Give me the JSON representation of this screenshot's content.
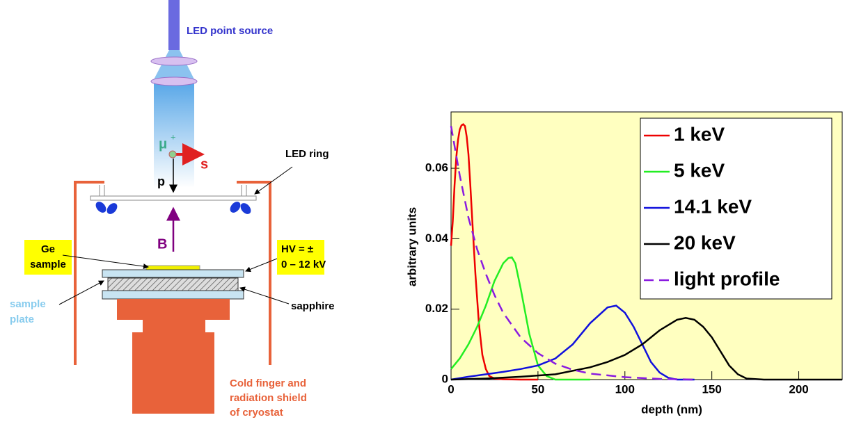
{
  "diagram": {
    "source_label": "LED point source",
    "muon": "μ",
    "muon_charge": "+",
    "spin": "s",
    "momentum": "p",
    "ring_label": "LED ring",
    "field": "B",
    "ge_label": [
      "Ge",
      "sample"
    ],
    "hv_label": [
      "HV = ±",
      "0 – 12 kV"
    ],
    "sapphire_label": "sapphire",
    "plate_label": [
      "sample",
      "plate"
    ],
    "cold_label": [
      "Cold finger and",
      "radiation shield",
      "of cryostat"
    ]
  },
  "chart_data": {
    "type": "line",
    "xlabel": "depth (nm)",
    "ylabel": "arbitrary units",
    "xlim": [
      0,
      225
    ],
    "ylim": [
      0,
      0.076
    ],
    "xticks": [
      0,
      50,
      100,
      150,
      200
    ],
    "yticks": [
      0,
      0.02,
      0.04,
      0.06
    ],
    "background": "#ffffc0",
    "legend": "upper right",
    "series": [
      {
        "name": "1 keV",
        "color": "#ee0000",
        "dashed": false,
        "x": [
          0,
          1,
          2,
          3,
          4,
          5,
          6,
          7,
          8,
          9,
          10,
          11,
          12,
          14,
          16,
          18,
          20,
          22,
          25,
          30,
          40,
          50
        ],
        "values": [
          0.038,
          0.045,
          0.055,
          0.063,
          0.068,
          0.071,
          0.0722,
          0.0725,
          0.072,
          0.069,
          0.064,
          0.056,
          0.047,
          0.03,
          0.016,
          0.007,
          0.003,
          0.001,
          0.0003,
          0.0001,
          0,
          0
        ]
      },
      {
        "name": "5 keV",
        "color": "#22ee22",
        "dashed": false,
        "x": [
          0,
          5,
          10,
          15,
          20,
          25,
          30,
          33,
          35,
          37,
          40,
          45,
          50,
          55,
          60,
          70,
          80
        ],
        "values": [
          0.003,
          0.006,
          0.01,
          0.015,
          0.021,
          0.028,
          0.033,
          0.0345,
          0.0347,
          0.033,
          0.026,
          0.013,
          0.004,
          0.001,
          0,
          0,
          0
        ]
      },
      {
        "name": "14.1 keV",
        "color": "#1111dd",
        "dashed": false,
        "x": [
          0,
          10,
          20,
          30,
          40,
          50,
          60,
          70,
          80,
          90,
          95,
          100,
          105,
          110,
          115,
          120,
          125,
          130,
          140
        ],
        "values": [
          0,
          0.0008,
          0.0015,
          0.0022,
          0.003,
          0.004,
          0.006,
          0.01,
          0.016,
          0.0205,
          0.021,
          0.019,
          0.015,
          0.01,
          0.005,
          0.002,
          0.0005,
          0,
          0
        ]
      },
      {
        "name": "20 keV",
        "color": "#000000",
        "dashed": false,
        "x": [
          0,
          20,
          40,
          60,
          80,
          90,
          100,
          110,
          120,
          130,
          135,
          140,
          145,
          150,
          155,
          160,
          165,
          170,
          180,
          200,
          225
        ],
        "values": [
          0,
          0.0003,
          0.0008,
          0.0015,
          0.0035,
          0.005,
          0.007,
          0.01,
          0.014,
          0.017,
          0.0175,
          0.017,
          0.015,
          0.012,
          0.008,
          0.004,
          0.0015,
          0.0003,
          0,
          0,
          0
        ]
      },
      {
        "name": "light profile",
        "color": "#8a1be0",
        "dashed": true,
        "x": [
          0,
          5,
          10,
          15,
          20,
          25,
          30,
          40,
          50,
          60,
          70,
          80,
          100,
          120,
          140
        ],
        "values": [
          0.072,
          0.058,
          0.046,
          0.037,
          0.03,
          0.024,
          0.019,
          0.012,
          0.0075,
          0.0045,
          0.0028,
          0.0017,
          0.0007,
          0.0002,
          0
        ]
      }
    ]
  }
}
